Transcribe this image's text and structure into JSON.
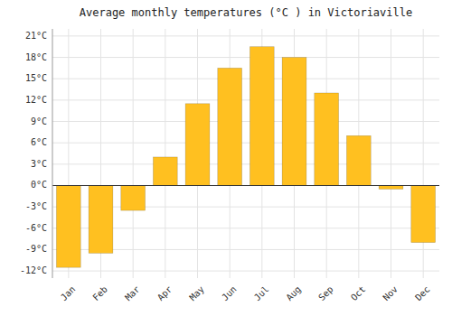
{
  "chart_data": {
    "type": "bar",
    "title": "Average monthly temperatures (°C ) in Victoriaville",
    "categories": [
      "Jan",
      "Feb",
      "Mar",
      "Apr",
      "May",
      "Jun",
      "Jul",
      "Aug",
      "Sep",
      "Oct",
      "Nov",
      "Dec"
    ],
    "values": [
      -11.5,
      -9.5,
      -3.5,
      4.0,
      11.5,
      16.5,
      19.5,
      18.0,
      13.0,
      7.0,
      -0.5,
      -8.0
    ],
    "color": "#FFC020",
    "ylim": [
      -13,
      22
    ],
    "yticks": [
      {
        "value": -12,
        "label": "-12°C"
      },
      {
        "value": -9,
        "label": "-9°C"
      },
      {
        "value": -6,
        "label": "-6°C"
      },
      {
        "value": -3,
        "label": "-3°C"
      },
      {
        "value": 0,
        "label": "0°C"
      },
      {
        "value": 3,
        "label": "3°C"
      },
      {
        "value": 6,
        "label": "6°C"
      },
      {
        "value": 9,
        "label": "9°C"
      },
      {
        "value": 12,
        "label": "12°C"
      },
      {
        "value": 15,
        "label": "15°C"
      },
      {
        "value": 18,
        "label": "18°C"
      },
      {
        "value": 21,
        "label": "21°C"
      }
    ],
    "grid": true
  }
}
